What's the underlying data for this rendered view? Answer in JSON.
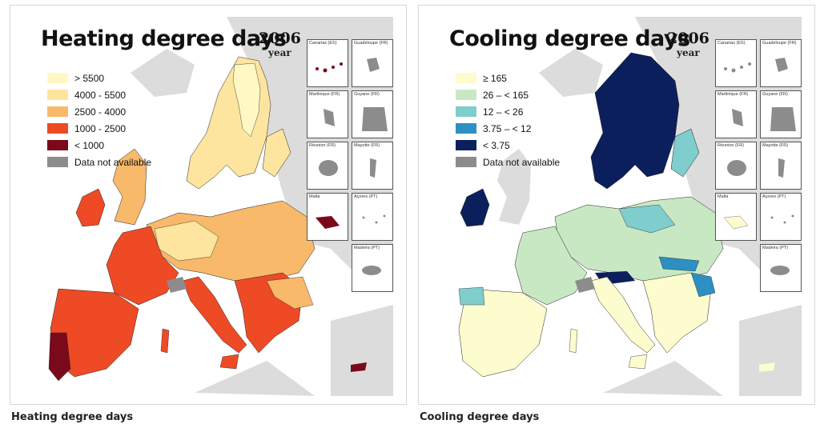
{
  "colors": {
    "land": "#dcdcdc",
    "sea": "#ffffff",
    "na": "#8c8c8c",
    "border": "#222222"
  },
  "heating": {
    "title": "Heating degree days",
    "year": "2006",
    "year_word": "year",
    "caption": "Heating degree days",
    "legend": [
      {
        "label": "> 5500",
        "color": "#fff8c4"
      },
      {
        "label": "4000 - 5500",
        "color": "#fde5a0"
      },
      {
        "label": "2500 - 4000",
        "color": "#f8b96a"
      },
      {
        "label": "1000 - 2500",
        "color": "#ee4a25"
      },
      {
        "label": "< 1000",
        "color": "#7a0a1a"
      },
      {
        "label": "Data not available",
        "color": "#8c8c8c"
      }
    ],
    "insets": [
      {
        "label": "Canarias (ES)"
      },
      {
        "label": "Guadeloupe (FR)"
      },
      {
        "label": "Martinique (FR)"
      },
      {
        "label": "Guyane (FR)"
      },
      {
        "label": "Réunion (FR)"
      },
      {
        "label": "Mayotte (FR)"
      },
      {
        "label": "Malta"
      },
      {
        "label": "Açores (PT)"
      },
      {
        "label": "Madeira (PT)"
      }
    ]
  },
  "cooling": {
    "title": "Cooling degree days",
    "year": "2006",
    "year_word": "year",
    "caption": "Cooling degree days",
    "legend": [
      {
        "label": "≥ 165",
        "color": "#fdfccf"
      },
      {
        "label": "26 – < 165",
        "color": "#c8e8c4"
      },
      {
        "label": "12 – < 26",
        "color": "#7fcdcd"
      },
      {
        "label": "3.75 – < 12",
        "color": "#2e8fc2"
      },
      {
        "label": "< 3.75",
        "color": "#0b1f5c"
      },
      {
        "label": "Data not available",
        "color": "#8c8c8c"
      }
    ],
    "insets": [
      {
        "label": "Canarias (ES)"
      },
      {
        "label": "Guadeloupe (FR)"
      },
      {
        "label": "Martinique (FR)"
      },
      {
        "label": "Guyane (FR)"
      },
      {
        "label": "Réunion (FR)"
      },
      {
        "label": "Mayotte (FR)"
      },
      {
        "label": "Malta"
      },
      {
        "label": "Açores (PT)"
      },
      {
        "label": "Madeira (PT)"
      }
    ]
  }
}
